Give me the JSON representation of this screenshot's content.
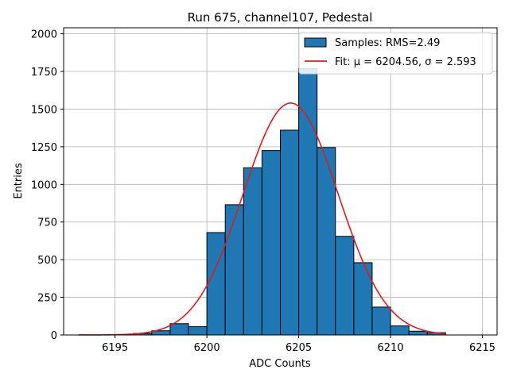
{
  "chart_data": {
    "type": "bar",
    "title": "Run 675, channel107, Pedestal",
    "xlabel": "ADC Counts",
    "ylabel": "Entries",
    "xlim": [
      6192.2,
      6215.8
    ],
    "ylim": [
      0,
      2040
    ],
    "xticks": [
      6195,
      6200,
      6205,
      6210,
      6215
    ],
    "yticks": [
      0,
      250,
      500,
      750,
      1000,
      1250,
      1500,
      1750,
      2000
    ],
    "grid": true,
    "legend_position": "top-right",
    "series": [
      {
        "name": "Samples: RMS=2.49",
        "kind": "histogram",
        "color": "#1f77b4",
        "bin_width": 1,
        "bin_left_edges": [
          6193,
          6194,
          6195,
          6196,
          6197,
          6198,
          6199,
          6200,
          6201,
          6202,
          6203,
          6204,
          6205,
          6206,
          6207,
          6208,
          6209,
          6210,
          6211,
          6212
        ],
        "values": [
          0,
          0,
          0,
          10,
          28,
          75,
          55,
          680,
          865,
          1110,
          1225,
          1360,
          1770,
          1245,
          655,
          480,
          185,
          60,
          25,
          15
        ]
      },
      {
        "name": "Fit: μ = 6204.56, σ = 2.593",
        "kind": "gaussian-line",
        "color": "#e41a1c",
        "mu": 6204.56,
        "sigma": 2.593,
        "amplitude": 1540,
        "x_range": [
          6193,
          6213
        ]
      }
    ]
  }
}
